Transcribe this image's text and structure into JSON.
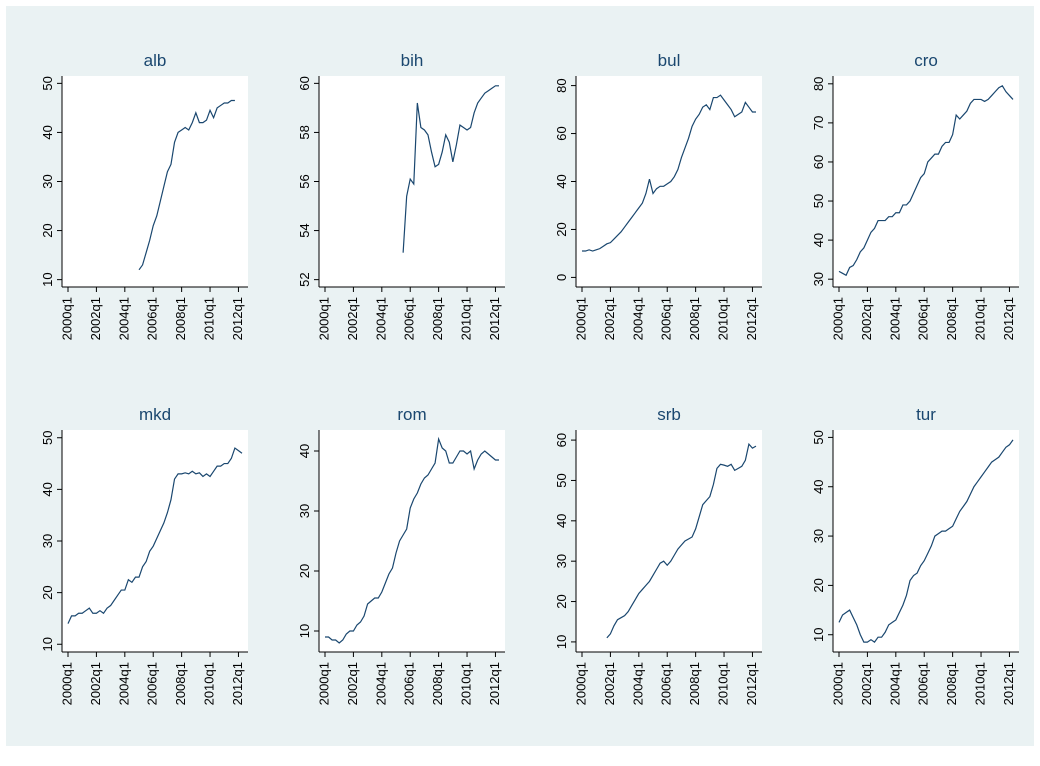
{
  "chart_data": [
    {
      "type": "line",
      "title": "alb",
      "color": "#1a476f",
      "ylim": [
        8.5,
        51.5
      ],
      "yticks": [
        10,
        20,
        30,
        40,
        50
      ],
      "categories": [
        "2000q1",
        null,
        null,
        null,
        null,
        null,
        null,
        null,
        "2002q1",
        null,
        null,
        null,
        null,
        null,
        null,
        null,
        "2004q1",
        null,
        null,
        null,
        null,
        null,
        null,
        null,
        "2006q1",
        null,
        null,
        null,
        null,
        null,
        null,
        null,
        "2008q1",
        null,
        null,
        null,
        null,
        null,
        null,
        null,
        "2010q1",
        null,
        null,
        null,
        null,
        null,
        null,
        null,
        "2012q1",
        null
      ],
      "values": [
        null,
        null,
        null,
        null,
        null,
        null,
        null,
        null,
        null,
        null,
        null,
        null,
        null,
        null,
        null,
        null,
        null,
        null,
        null,
        null,
        12,
        13,
        15.5,
        18,
        21,
        23,
        26,
        29,
        32,
        33.5,
        38,
        40,
        40.5,
        41,
        40.5,
        42,
        44,
        42,
        42,
        42.5,
        44.5,
        43,
        45,
        45.5,
        46,
        46,
        46.5,
        46.5,
        null,
        null
      ]
    },
    {
      "type": "line",
      "title": "bih",
      "color": "#1a476f",
      "ylim": [
        51.7,
        60.3
      ],
      "yticks": [
        52,
        54,
        56,
        58,
        60
      ],
      "categories": [
        "2000q1",
        null,
        null,
        null,
        null,
        null,
        null,
        null,
        "2002q1",
        null,
        null,
        null,
        null,
        null,
        null,
        null,
        "2004q1",
        null,
        null,
        null,
        null,
        null,
        null,
        null,
        "2006q1",
        null,
        null,
        null,
        null,
        null,
        null,
        null,
        "2008q1",
        null,
        null,
        null,
        null,
        null,
        null,
        null,
        "2010q1",
        null,
        null,
        null,
        null,
        null,
        null,
        null,
        "2012q1",
        null
      ],
      "values": [
        null,
        null,
        null,
        null,
        null,
        null,
        null,
        null,
        null,
        null,
        null,
        null,
        null,
        null,
        null,
        null,
        null,
        null,
        null,
        null,
        null,
        null,
        53.1,
        55.4,
        56.1,
        55.9,
        59.2,
        58.2,
        58.1,
        57.9,
        57.2,
        56.6,
        56.7,
        57.2,
        57.9,
        57.6,
        56.8,
        57.5,
        58.3,
        58.2,
        58.1,
        58.2,
        58.8,
        59.2,
        59.4,
        59.6,
        59.7,
        59.8,
        59.9,
        59.9
      ]
    },
    {
      "type": "line",
      "title": "bul",
      "color": "#1a476f",
      "ylim": [
        -4,
        84
      ],
      "yticks": [
        0,
        20,
        40,
        60,
        80
      ],
      "categories": [
        "2000q1",
        null,
        null,
        null,
        null,
        null,
        null,
        null,
        "2002q1",
        null,
        null,
        null,
        null,
        null,
        null,
        null,
        "2004q1",
        null,
        null,
        null,
        null,
        null,
        null,
        null,
        "2006q1",
        null,
        null,
        null,
        null,
        null,
        null,
        null,
        "2008q1",
        null,
        null,
        null,
        null,
        null,
        null,
        null,
        "2010q1",
        null,
        null,
        null,
        null,
        null,
        null,
        null,
        "2012q1",
        null
      ],
      "values": [
        11,
        11,
        11.5,
        11,
        11.5,
        12,
        13,
        14,
        14.5,
        16,
        17.5,
        19,
        21,
        23,
        25,
        27,
        29,
        31,
        35,
        41,
        35,
        37,
        38,
        38,
        39,
        40,
        42,
        45,
        50,
        54,
        58,
        63,
        66,
        68,
        71,
        72,
        70,
        75,
        75,
        76,
        74,
        72,
        70,
        67,
        68,
        69,
        73,
        71,
        69,
        69
      ]
    },
    {
      "type": "line",
      "title": "cro",
      "color": "#1a476f",
      "ylim": [
        28,
        82
      ],
      "yticks": [
        30,
        40,
        50,
        60,
        70,
        80
      ],
      "categories": [
        "2000q1",
        null,
        null,
        null,
        null,
        null,
        null,
        null,
        "2002q1",
        null,
        null,
        null,
        null,
        null,
        null,
        null,
        "2004q1",
        null,
        null,
        null,
        null,
        null,
        null,
        null,
        "2006q1",
        null,
        null,
        null,
        null,
        null,
        null,
        null,
        "2008q1",
        null,
        null,
        null,
        null,
        null,
        null,
        null,
        "2010q1",
        null,
        null,
        null,
        null,
        null,
        null,
        null,
        "2012q1",
        null
      ],
      "values": [
        32,
        31.5,
        31,
        33,
        33.5,
        35,
        37,
        38,
        40,
        42,
        43,
        45,
        45,
        45,
        46,
        46,
        47,
        47,
        49,
        49,
        50,
        52,
        54,
        56,
        57,
        60,
        61,
        62,
        62,
        64,
        65,
        65,
        67,
        72,
        71,
        72,
        73,
        75,
        76,
        76,
        76,
        75.5,
        76,
        77,
        78,
        79,
        79.5,
        78,
        77,
        76
      ]
    },
    {
      "type": "line",
      "title": "mkd",
      "color": "#1a476f",
      "ylim": [
        8.5,
        51.5
      ],
      "yticks": [
        10,
        20,
        30,
        40,
        50
      ],
      "categories": [
        "2000q1",
        null,
        null,
        null,
        null,
        null,
        null,
        null,
        "2002q1",
        null,
        null,
        null,
        null,
        null,
        null,
        null,
        "2004q1",
        null,
        null,
        null,
        null,
        null,
        null,
        null,
        "2006q1",
        null,
        null,
        null,
        null,
        null,
        null,
        null,
        "2008q1",
        null,
        null,
        null,
        null,
        null,
        null,
        null,
        "2010q1",
        null,
        null,
        null,
        null,
        null,
        null,
        null,
        "2012q1",
        null
      ],
      "values": [
        14,
        15.5,
        15.5,
        16,
        16,
        16.5,
        17,
        16,
        16,
        16.5,
        16,
        17,
        17.5,
        18.5,
        19.5,
        20.5,
        20.5,
        22.5,
        22,
        23,
        23,
        25,
        26,
        28,
        29,
        30.5,
        32,
        33.5,
        35.5,
        38,
        42,
        43,
        43,
        43.2,
        43,
        43.5,
        43,
        43.2,
        42.5,
        43,
        42.5,
        43.5,
        44.5,
        44.5,
        45,
        45,
        46,
        48,
        47.5,
        47
      ]
    },
    {
      "type": "line",
      "title": "rom",
      "color": "#1a476f",
      "ylim": [
        6.5,
        43.5
      ],
      "yticks": [
        10,
        20,
        30,
        40
      ],
      "categories": [
        "2000q1",
        null,
        null,
        null,
        null,
        null,
        null,
        null,
        "2002q1",
        null,
        null,
        null,
        null,
        null,
        null,
        null,
        "2004q1",
        null,
        null,
        null,
        null,
        null,
        null,
        null,
        "2006q1",
        null,
        null,
        null,
        null,
        null,
        null,
        null,
        "2008q1",
        null,
        null,
        null,
        null,
        null,
        null,
        null,
        "2010q1",
        null,
        null,
        null,
        null,
        null,
        null,
        null,
        "2012q1",
        null
      ],
      "values": [
        9,
        9,
        8.5,
        8.5,
        8,
        8.5,
        9.5,
        10,
        10,
        11,
        11.5,
        12.5,
        14.5,
        15,
        15.5,
        15.5,
        16.5,
        18,
        19.5,
        20.5,
        23,
        25,
        26,
        27,
        30.5,
        32,
        33,
        34.5,
        35.5,
        36,
        37,
        38,
        42,
        40.5,
        40,
        38,
        38,
        39,
        40,
        40,
        39.5,
        40,
        37,
        38.5,
        39.5,
        40,
        39.5,
        39,
        38.5,
        38.5
      ]
    },
    {
      "type": "line",
      "title": "srb",
      "color": "#1a476f",
      "ylim": [
        7.5,
        62.5
      ],
      "yticks": [
        10,
        20,
        30,
        40,
        50,
        60
      ],
      "categories": [
        "2000q1",
        null,
        null,
        null,
        null,
        null,
        null,
        null,
        "2002q1",
        null,
        null,
        null,
        null,
        null,
        null,
        null,
        "2004q1",
        null,
        null,
        null,
        null,
        null,
        null,
        null,
        "2006q1",
        null,
        null,
        null,
        null,
        null,
        null,
        null,
        "2008q1",
        null,
        null,
        null,
        null,
        null,
        null,
        null,
        "2010q1",
        null,
        null,
        null,
        null,
        null,
        null,
        null,
        "2012q1",
        null
      ],
      "values": [
        null,
        null,
        null,
        null,
        null,
        null,
        null,
        11,
        12,
        14,
        15.5,
        16,
        16.5,
        17.5,
        19,
        20.5,
        22,
        23,
        24,
        25,
        26.5,
        28,
        29.5,
        30,
        29,
        30,
        31.5,
        33,
        34,
        35,
        35.5,
        36,
        38,
        41,
        44,
        45,
        46,
        49,
        53,
        54,
        53.8,
        53.5,
        54,
        52.5,
        53,
        53.5,
        55,
        59,
        58,
        58.5
      ]
    },
    {
      "type": "line",
      "title": "tur",
      "color": "#1a476f",
      "ylim": [
        6.5,
        51.5
      ],
      "yticks": [
        10,
        20,
        30,
        40,
        50
      ],
      "categories": [
        "2000q1",
        null,
        null,
        null,
        null,
        null,
        null,
        null,
        "2002q1",
        null,
        null,
        null,
        null,
        null,
        null,
        null,
        "2004q1",
        null,
        null,
        null,
        null,
        null,
        null,
        null,
        "2006q1",
        null,
        null,
        null,
        null,
        null,
        null,
        null,
        "2008q1",
        null,
        null,
        null,
        null,
        null,
        null,
        null,
        "2010q1",
        null,
        null,
        null,
        null,
        null,
        null,
        null,
        "2012q1",
        null
      ],
      "values": [
        12.5,
        14,
        14.5,
        15,
        13.5,
        12,
        10,
        8.5,
        8.5,
        9,
        8.5,
        9.5,
        9.5,
        10.5,
        12,
        12.5,
        13,
        14.5,
        16,
        18,
        21,
        22,
        22.5,
        24,
        25,
        26.5,
        28,
        30,
        30.5,
        31,
        31,
        31.5,
        32,
        33.5,
        35,
        36,
        37,
        38.5,
        40,
        41,
        42,
        43,
        44,
        45,
        45.5,
        46,
        47,
        48,
        48.5,
        49.5
      ]
    }
  ]
}
